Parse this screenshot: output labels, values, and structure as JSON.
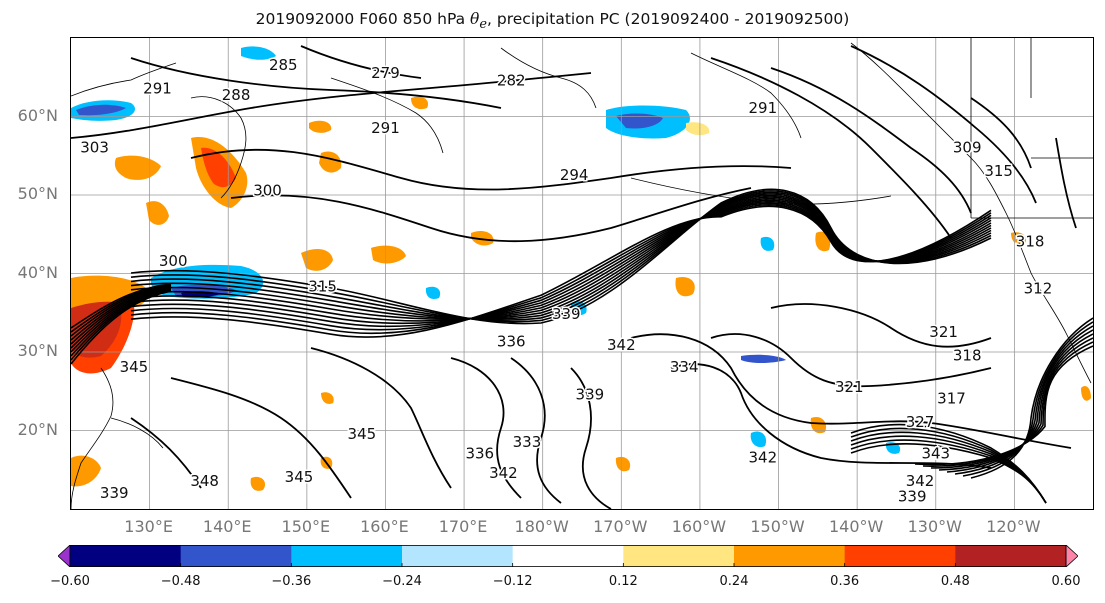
{
  "title": {
    "prefix": "2019092000 F060 850 hPa ",
    "theta_symbol": "θ",
    "theta_sub": "e",
    "suffix": ", precipitation PC (2019092400 - 2019092500)"
  },
  "lat_labels": [
    {
      "text": "60°N",
      "lat": 60
    },
    {
      "text": "50°N",
      "lat": 50
    },
    {
      "text": "40°N",
      "lat": 40
    },
    {
      "text": "30°N",
      "lat": 30
    },
    {
      "text": "20°N",
      "lat": 20
    }
  ],
  "lon_labels": [
    {
      "text": "130°E",
      "lon": 130
    },
    {
      "text": "140°E",
      "lon": 140
    },
    {
      "text": "150°E",
      "lon": 150
    },
    {
      "text": "160°E",
      "lon": 160
    },
    {
      "text": "170°E",
      "lon": 170
    },
    {
      "text": "180°W",
      "lon": 180
    },
    {
      "text": "170°W",
      "lon": 190
    },
    {
      "text": "160°W",
      "lon": 200
    },
    {
      "text": "150°W",
      "lon": 210
    },
    {
      "text": "140°W",
      "lon": 220
    },
    {
      "text": "130°W",
      "lon": 230
    },
    {
      "text": "120°W",
      "lon": 240
    }
  ],
  "extent": {
    "lon_min": 120,
    "lon_max": 250,
    "lat_min": 10,
    "lat_max": 70
  },
  "colorbar": {
    "bounds": [
      -0.72,
      -0.6,
      -0.48,
      -0.36,
      -0.24,
      -0.12,
      0.12,
      0.24,
      0.36,
      0.48,
      0.6,
      0.72
    ],
    "colors": [
      "#9933cc",
      "#000080",
      "#3355cc",
      "#00bfff",
      "#b3e5ff",
      "#ffffff",
      "#ffe680",
      "#ff9900",
      "#ff4000",
      "#b22222",
      "#ff85a8"
    ],
    "tick_labels": [
      "−0.60",
      "−0.48",
      "−0.36",
      "−0.24",
      "−0.12",
      "0.12",
      "0.24",
      "0.36",
      "0.48",
      "0.60"
    ],
    "tick_values": [
      -0.6,
      -0.48,
      -0.36,
      -0.24,
      -0.12,
      0.12,
      0.24,
      0.36,
      0.48,
      0.6
    ]
  },
  "contour_labels": [
    {
      "text": "291",
      "lon": 131,
      "lat": 63.5
    },
    {
      "text": "288",
      "lon": 141,
      "lat": 62.7
    },
    {
      "text": "279",
      "lon": 160,
      "lat": 65.5
    },
    {
      "text": "285",
      "lon": 147,
      "lat": 66.5
    },
    {
      "text": "282",
      "lon": 176,
      "lat": 64.5
    },
    {
      "text": "291",
      "lon": 160,
      "lat": 58.5
    },
    {
      "text": "294",
      "lon": 184,
      "lat": 52.5
    },
    {
      "text": "300",
      "lon": 145,
      "lat": 50.5
    },
    {
      "text": "300",
      "lon": 133,
      "lat": 41.5
    },
    {
      "text": "303",
      "lon": 123,
      "lat": 56
    },
    {
      "text": "315",
      "lon": 152,
      "lat": 38.3
    },
    {
      "text": "336",
      "lon": 176,
      "lat": 31.3
    },
    {
      "text": "342",
      "lon": 190,
      "lat": 30.8
    },
    {
      "text": "339",
      "lon": 183,
      "lat": 34.8
    },
    {
      "text": "345",
      "lon": 128,
      "lat": 28
    },
    {
      "text": "345",
      "lon": 157,
      "lat": 19.5
    },
    {
      "text": "345",
      "lon": 149,
      "lat": 14
    },
    {
      "text": "348",
      "lon": 137,
      "lat": 13.5
    },
    {
      "text": "339",
      "lon": 125.5,
      "lat": 12
    },
    {
      "text": "333",
      "lon": 178,
      "lat": 18.5
    },
    {
      "text": "336",
      "lon": 172,
      "lat": 17
    },
    {
      "text": "342",
      "lon": 175,
      "lat": 14.5
    },
    {
      "text": "339",
      "lon": 186,
      "lat": 24.5
    },
    {
      "text": "334",
      "lon": 198,
      "lat": 28
    },
    {
      "text": "342",
      "lon": 208,
      "lat": 16.5
    },
    {
      "text": "321",
      "lon": 219,
      "lat": 25.5
    },
    {
      "text": "318",
      "lon": 234,
      "lat": 29.5
    },
    {
      "text": "321",
      "lon": 231,
      "lat": 32.5
    },
    {
      "text": "327",
      "lon": 228,
      "lat": 21
    },
    {
      "text": "343",
      "lon": 230,
      "lat": 17
    },
    {
      "text": "339",
      "lon": 227,
      "lat": 11.5
    },
    {
      "text": "342",
      "lon": 228,
      "lat": 13.5
    },
    {
      "text": "317",
      "lon": 232,
      "lat": 24
    },
    {
      "text": "309",
      "lon": 234,
      "lat": 56
    },
    {
      "text": "315",
      "lon": 238,
      "lat": 53
    },
    {
      "text": "312",
      "lon": 243,
      "lat": 38
    },
    {
      "text": "318",
      "lon": 242,
      "lat": 44
    },
    {
      "text": "291",
      "lon": 208,
      "lat": 61
    }
  ]
}
